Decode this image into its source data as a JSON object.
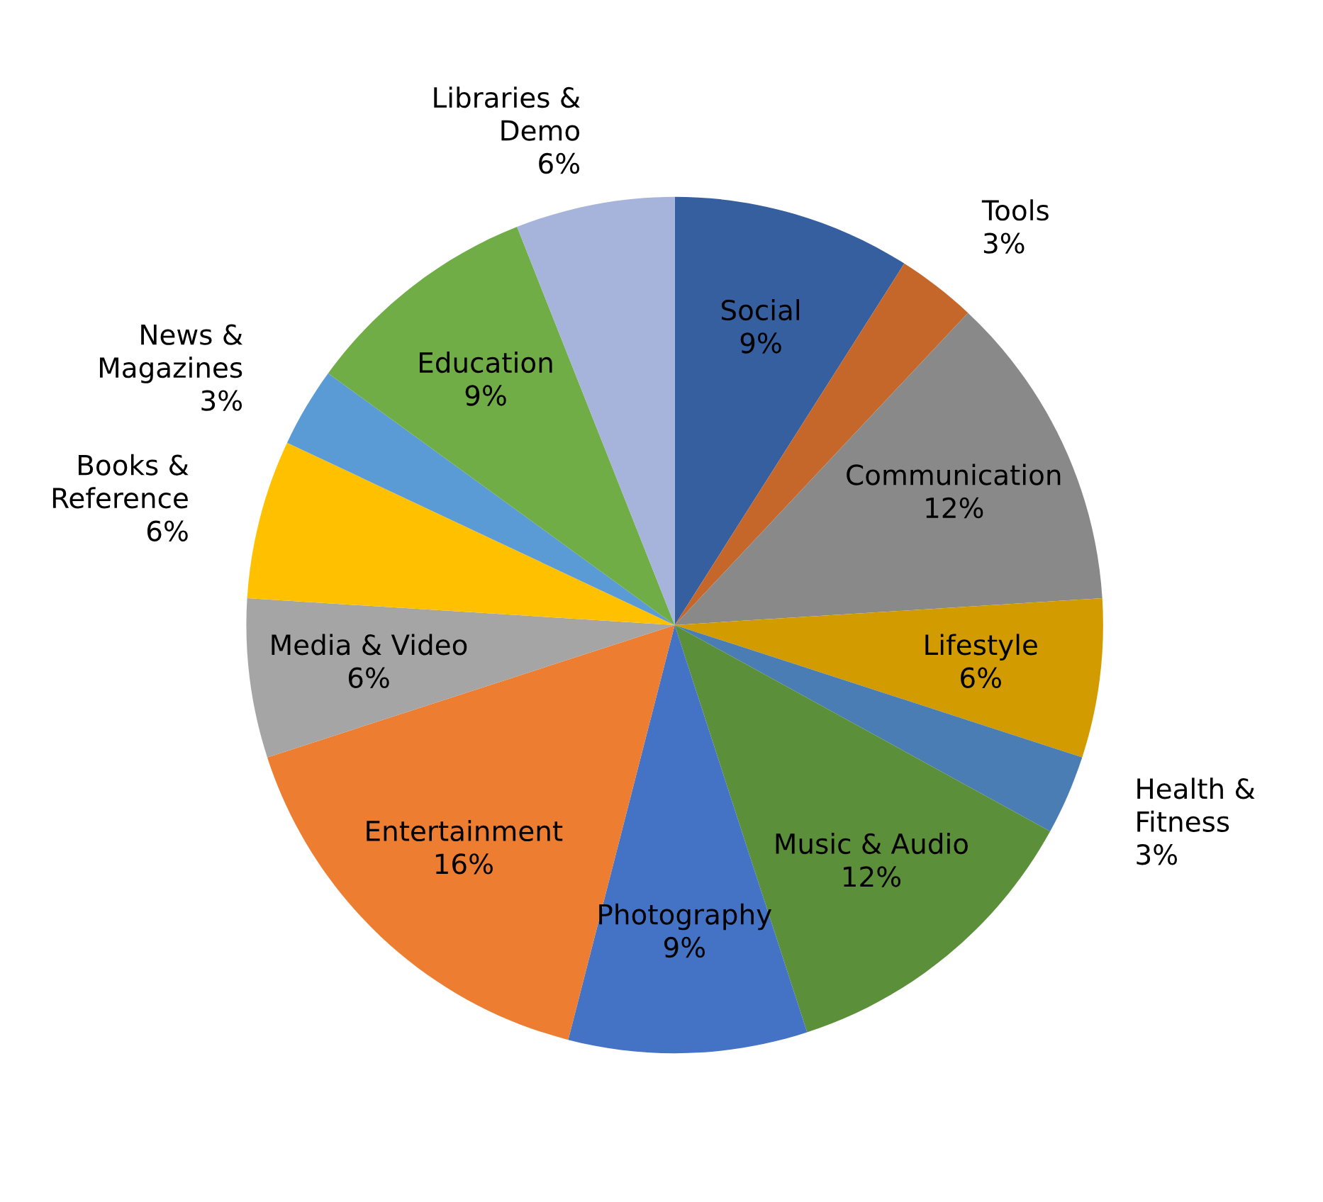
{
  "chart_data": {
    "type": "pie",
    "categories": [
      "Social",
      "Tools",
      "Communication",
      "Lifestyle",
      "Health & Fitness",
      "Music & Audio",
      "Photography",
      "Entertainment",
      "Media & Video",
      "Books & Reference",
      "News & Magazines",
      "Education",
      "Libraries & Demo"
    ],
    "values": [
      9,
      3,
      12,
      6,
      3,
      12,
      9,
      16,
      6,
      6,
      3,
      9,
      6
    ],
    "colors": [
      "#365f9f",
      "#c5672b",
      "#898989",
      "#d29c00",
      "#4a7db3",
      "#5b8f3a",
      "#4472c4",
      "#ed7d31",
      "#a5a5a5",
      "#ffc000",
      "#5b9bd5",
      "#70ad47",
      "#a6b3db"
    ],
    "value_labels": [
      "9%",
      "3%",
      "12%",
      "6%",
      "3%",
      "12%",
      "9%",
      "16%",
      "6%",
      "6%",
      "3%",
      "9%",
      "6%"
    ]
  }
}
